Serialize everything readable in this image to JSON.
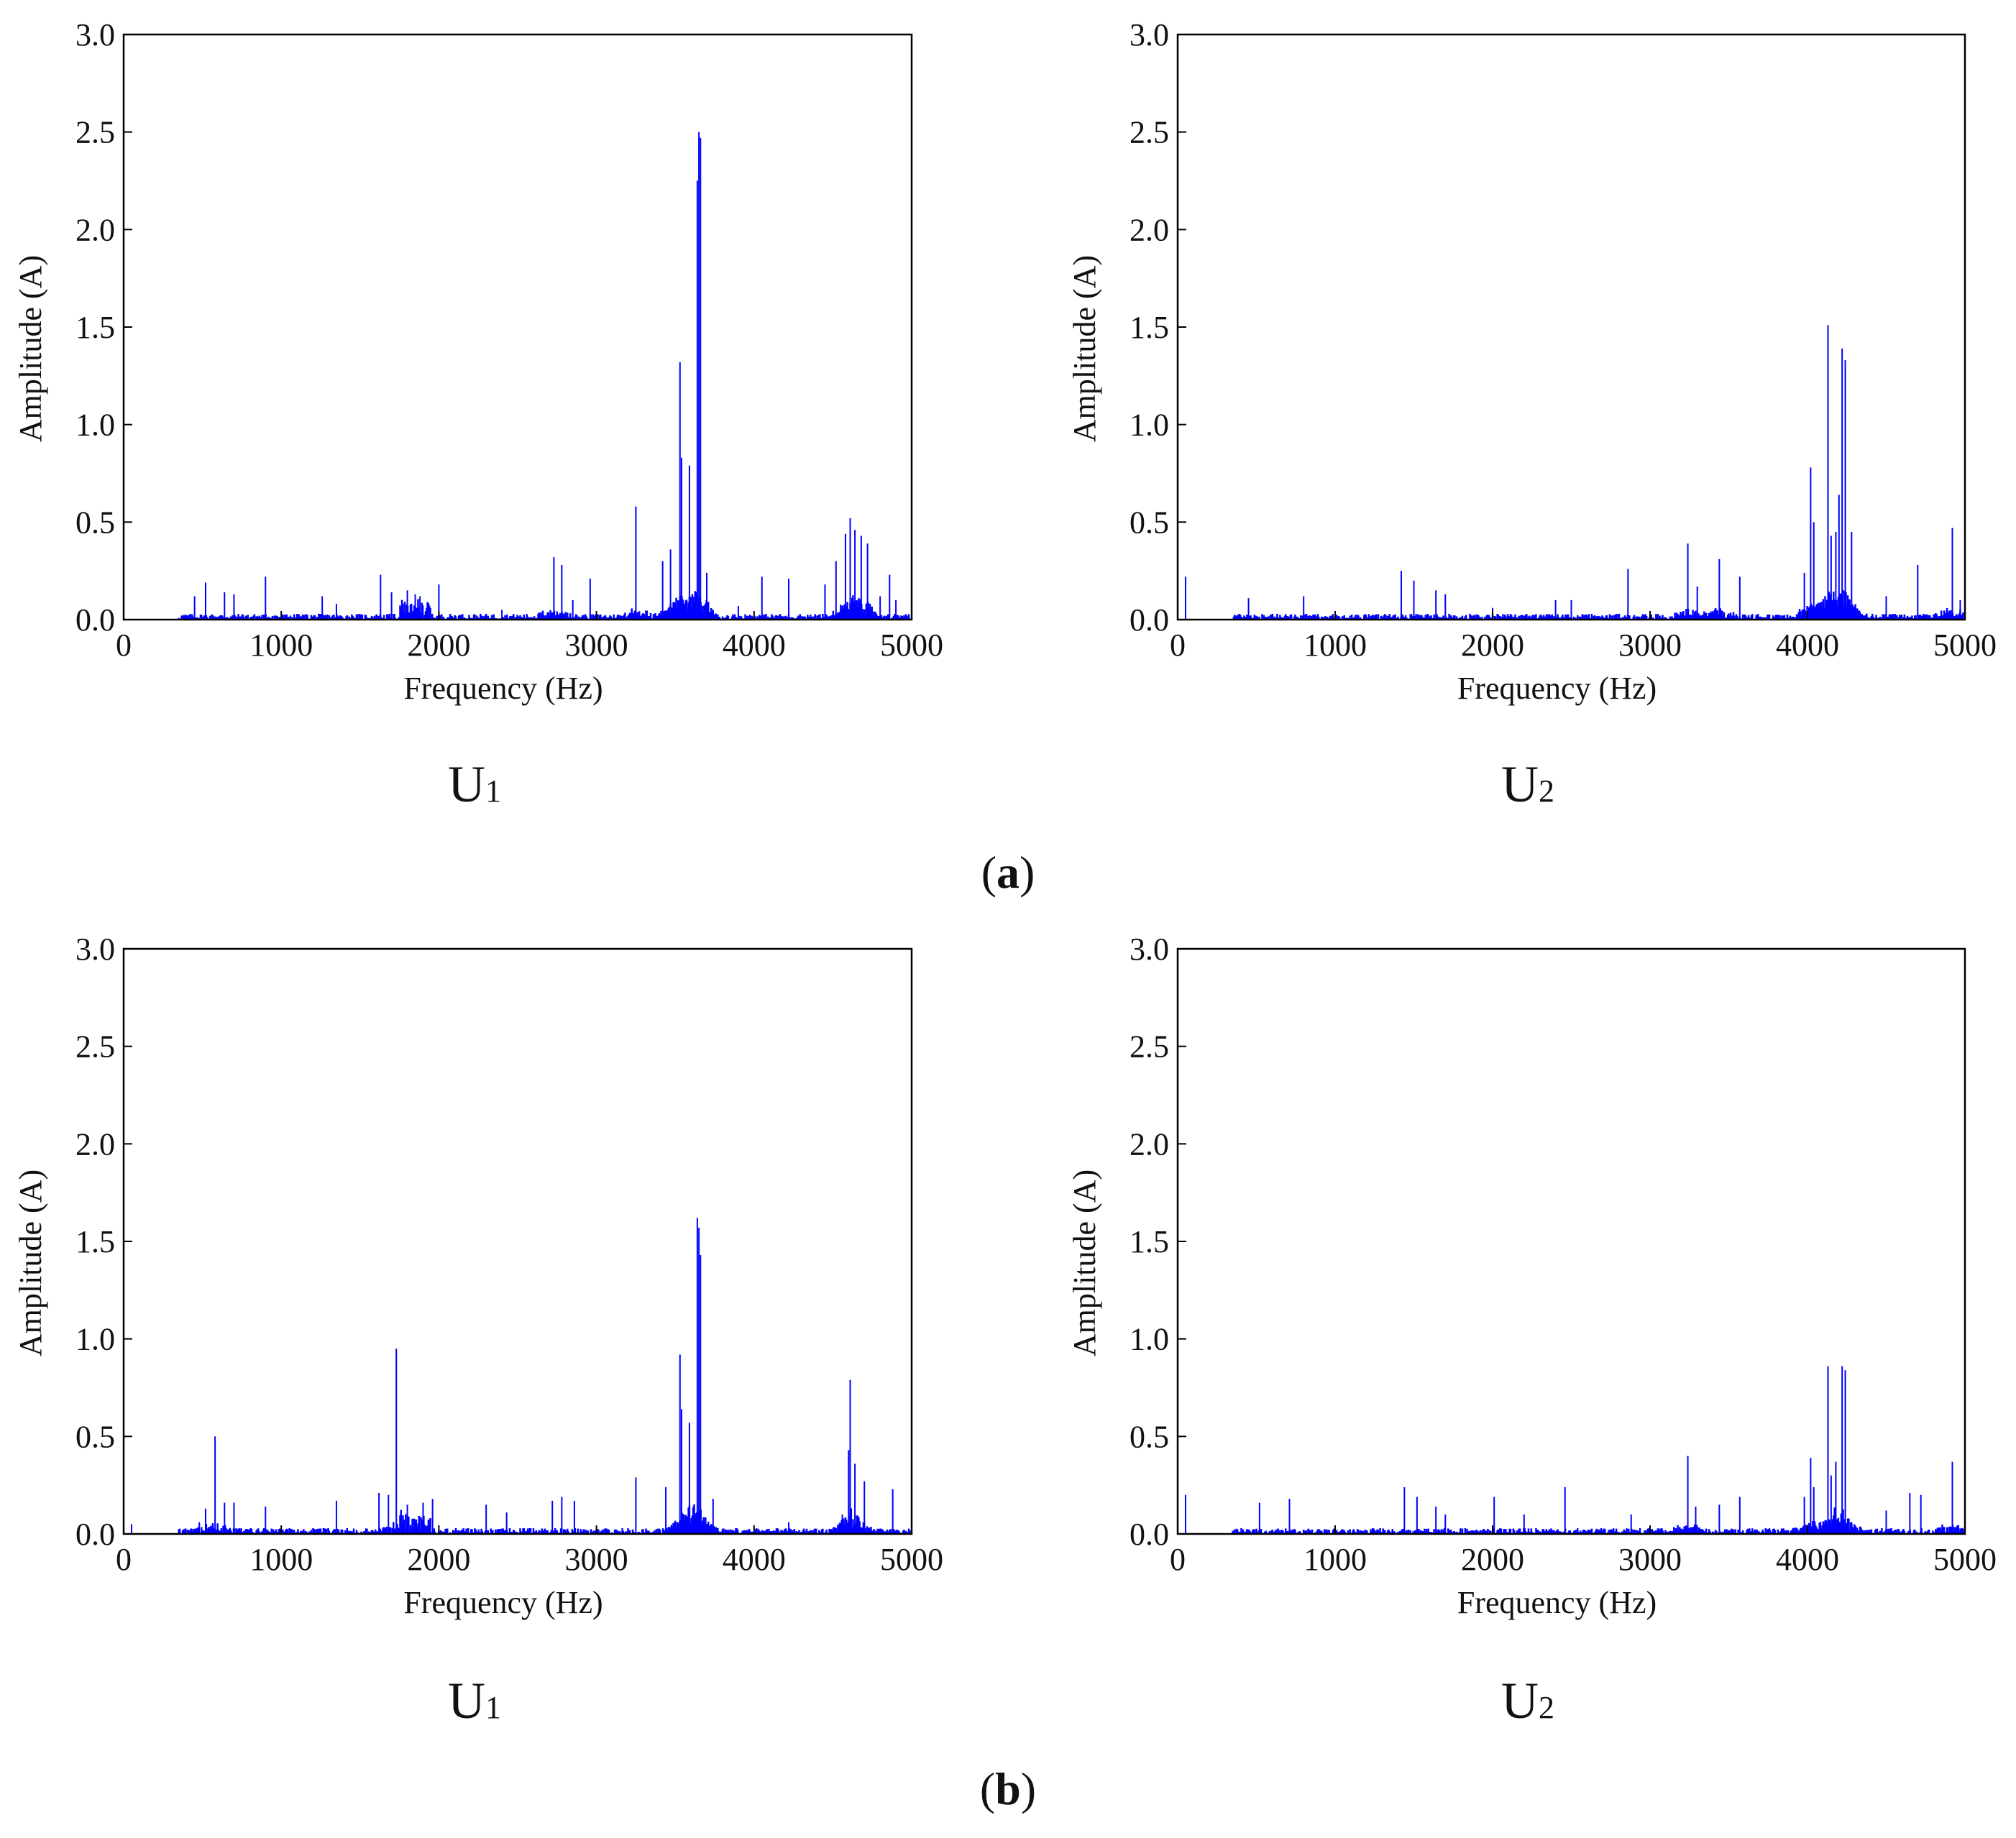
{
  "style": {
    "series_color": "#0000ff"
  },
  "groups": [
    {
      "open": "(",
      "letter": "a",
      "close": ")"
    },
    {
      "open": "(",
      "letter": "b",
      "close": ")"
    }
  ],
  "chart_data": [
    {
      "type": "bar",
      "group": "a",
      "panel_label": {
        "main": "U",
        "sub": "1"
      },
      "xlabel": "Frequency (Hz)",
      "ylabel": "Amplitude (A)",
      "xlim": [
        0,
        5000
      ],
      "ylim": [
        0,
        3.0
      ],
      "xticks": [
        "0",
        "1000",
        "2000",
        "3000",
        "4000",
        "5000"
      ],
      "yticks": [
        "0.0",
        "0.5",
        "1.0",
        "1.5",
        "2.0",
        "2.5",
        "3.0"
      ],
      "grid": false,
      "x": [
        450,
        520,
        640,
        700,
        900,
        1260,
        1350,
        1630,
        1700,
        1800,
        1850,
        1880,
        2000,
        2400,
        2730,
        2780,
        2850,
        2960,
        3250,
        3420,
        3470,
        3530,
        3540,
        3590,
        3640,
        3650,
        3660,
        3700,
        3900,
        4050,
        4220,
        4450,
        4520,
        4580,
        4610,
        4640,
        4680,
        4720,
        4800,
        4860,
        4900
      ],
      "y": [
        0.12,
        0.19,
        0.14,
        0.13,
        0.22,
        0.12,
        0.08,
        0.23,
        0.14,
        0.15,
        0.13,
        0.12,
        0.18,
        0.05,
        0.32,
        0.28,
        0.1,
        0.21,
        0.58,
        0.3,
        0.36,
        1.32,
        0.83,
        0.79,
        2.25,
        2.5,
        2.47,
        0.24,
        0.07,
        0.22,
        0.21,
        0.18,
        0.3,
        0.44,
        0.52,
        0.46,
        0.43,
        0.39,
        0.12,
        0.23,
        0.1
      ]
    },
    {
      "type": "bar",
      "group": "a",
      "panel_label": {
        "main": "U",
        "sub": "2"
      },
      "xlabel": "Frequency (Hz)",
      "ylabel": "Amplitude (A)",
      "xlim": [
        0,
        5000
      ],
      "ylim": [
        0,
        3.0
      ],
      "xticks": [
        "0",
        "1000",
        "2000",
        "3000",
        "4000",
        "5000"
      ],
      "yticks": [
        "0.0",
        "0.5",
        "1.0",
        "1.5",
        "2.0",
        "2.5",
        "3.0"
      ],
      "grid": false,
      "x": [
        50,
        450,
        800,
        1420,
        1500,
        1640,
        1700,
        2000,
        2400,
        2500,
        2860,
        3240,
        3300,
        3440,
        3570,
        3980,
        4020,
        4040,
        4130,
        4150,
        4180,
        4200,
        4220,
        4240,
        4280,
        4500,
        4700,
        4920,
        4970
      ],
      "y": [
        0.22,
        0.11,
        0.12,
        0.25,
        0.2,
        0.15,
        0.13,
        0.06,
        0.1,
        0.1,
        0.26,
        0.39,
        0.17,
        0.31,
        0.22,
        0.24,
        0.78,
        0.5,
        1.51,
        0.43,
        0.45,
        0.64,
        1.39,
        1.33,
        0.45,
        0.12,
        0.28,
        0.47,
        0.1
      ]
    },
    {
      "type": "bar",
      "group": "b",
      "panel_label": {
        "main": "U",
        "sub": "1"
      },
      "xlabel": "Frequency (Hz)",
      "ylabel": "Amplitude (A)",
      "xlim": [
        0,
        5000
      ],
      "ylim": [
        0,
        3.0
      ],
      "xticks": [
        "0",
        "1000",
        "2000",
        "3000",
        "4000",
        "5000"
      ],
      "yticks": [
        "0.0",
        "0.5",
        "1.0",
        "1.5",
        "2.0",
        "2.5",
        "3.0"
      ],
      "grid": false,
      "x": [
        50,
        480,
        520,
        580,
        640,
        700,
        900,
        1350,
        1620,
        1680,
        1730,
        1800,
        1900,
        1960,
        2300,
        2430,
        2720,
        2780,
        2860,
        3250,
        3440,
        3530,
        3540,
        3590,
        3640,
        3650,
        3660,
        3740,
        4220,
        4560,
        4600,
        4610,
        4640,
        4700,
        4880
      ],
      "y": [
        0.05,
        0.06,
        0.13,
        0.5,
        0.16,
        0.16,
        0.14,
        0.17,
        0.21,
        0.2,
        0.95,
        0.15,
        0.16,
        0.18,
        0.15,
        0.11,
        0.17,
        0.19,
        0.17,
        0.29,
        0.24,
        0.92,
        0.64,
        0.57,
        1.62,
        1.57,
        1.43,
        0.18,
        0.06,
        0.1,
        0.43,
        0.79,
        0.36,
        0.27,
        0.23
      ]
    },
    {
      "type": "bar",
      "group": "b",
      "panel_label": {
        "main": "U",
        "sub": "2"
      },
      "xlabel": "Frequency (Hz)",
      "ylabel": "Amplitude (A)",
      "xlim": [
        0,
        5000
      ],
      "ylim": [
        0,
        3.0
      ],
      "xticks": [
        "0",
        "1000",
        "2000",
        "3000",
        "4000",
        "5000"
      ],
      "yticks": [
        "0.0",
        "0.5",
        "1.0",
        "1.5",
        "2.0",
        "2.5",
        "3.0"
      ],
      "grid": false,
      "x": [
        50,
        520,
        710,
        1440,
        1520,
        1640,
        1700,
        2010,
        2200,
        2460,
        2880,
        3240,
        3290,
        3440,
        3570,
        3980,
        4020,
        4040,
        4130,
        4150,
        4180,
        4220,
        4240,
        4500,
        4650,
        4720,
        4920
      ],
      "y": [
        0.2,
        0.16,
        0.18,
        0.24,
        0.19,
        0.14,
        0.1,
        0.19,
        0.1,
        0.24,
        0.1,
        0.4,
        0.14,
        0.15,
        0.19,
        0.19,
        0.39,
        0.24,
        0.86,
        0.3,
        0.37,
        0.86,
        0.84,
        0.12,
        0.21,
        0.2,
        0.37
      ]
    }
  ]
}
